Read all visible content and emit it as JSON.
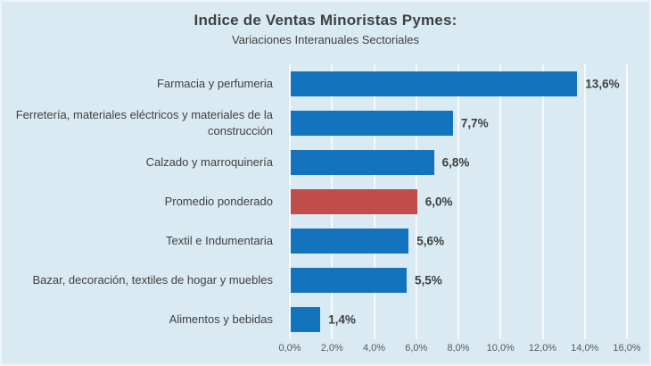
{
  "chart": {
    "title": "Indice de Ventas Minoristas Pymes:",
    "subtitle": "Variaciones Interanuales Sectoriales"
  },
  "chart_data": {
    "type": "bar",
    "orientation": "horizontal",
    "title": "Indice de Ventas Minoristas Pymes:",
    "subtitle": "Variaciones Interanuales Sectoriales",
    "categories": [
      "Farmacia y perfumeria",
      "Ferretería, materiales eléctricos y materiales de la construcción",
      "Calzado y marroquinería",
      "Promedio ponderado",
      "Textil e Indumentaria",
      "Bazar, decoración, textiles de hogar y muebles",
      "Alimentos y bebidas"
    ],
    "values": [
      13.6,
      7.7,
      6.8,
      6.0,
      5.6,
      5.5,
      1.4
    ],
    "value_labels": [
      "13,6%",
      "7,7%",
      "6,8%",
      "6,0%",
      "5,6%",
      "5,5%",
      "1,4%"
    ],
    "bar_colors": [
      "#1373BD",
      "#1373BD",
      "#1373BD",
      "#C04D4A",
      "#1373BD",
      "#1373BD",
      "#1373BD"
    ],
    "x_ticks": [
      "0,0%",
      "2,0%",
      "4,0%",
      "6,0%",
      "8,0%",
      "10,0%",
      "12,0%",
      "14,0%",
      "16,0%"
    ],
    "x_tick_values": [
      0,
      2,
      4,
      6,
      8,
      10,
      12,
      14,
      16
    ],
    "xlim": [
      0,
      16
    ],
    "xlabel": "",
    "ylabel": "",
    "grid": true,
    "legend": false,
    "colors": {
      "background": "#D9EAF2",
      "bar_blue": "#1373BD",
      "bar_red": "#C04D4A",
      "label_text": "#404040",
      "value_text": "#3f3f3f",
      "tick_text": "#595959",
      "gridline": "rgba(255,255,255,0.75)"
    }
  }
}
